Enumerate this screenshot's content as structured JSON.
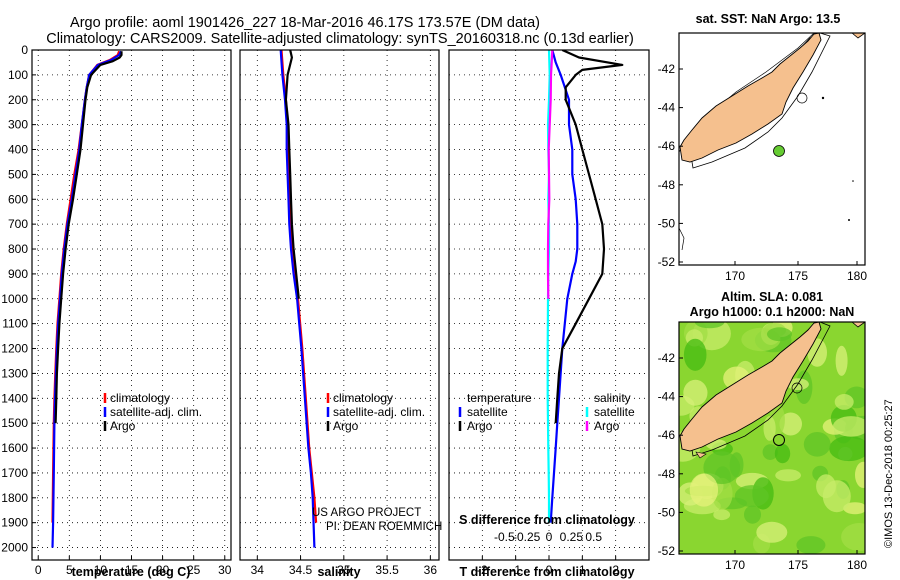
{
  "title_line1": "Argo profile: aoml 1901426_227 18-Mar-2016 46.17S 173.57E (DM data)",
  "title_line2": "Climatology: CARS2009. Satellite-adjusted climatology: synTS_20160318.nc (0.13d earlier)",
  "colors": {
    "climatology": "#ff0000",
    "satellite": "#0000ff",
    "argo": "#000000",
    "sal_satellite": "#00ffff",
    "sal_argo": "#ff00ff",
    "land": "#f5c08e",
    "sla_high": "#f0f590",
    "sla_low": "#33cc00"
  },
  "chart_data": [
    {
      "type": "line",
      "name": "temperature-panel",
      "xlabel": "temperature (deg C)",
      "xlim": [
        -1,
        31
      ],
      "ylim": [
        2050,
        0
      ],
      "xticks": [
        0,
        5,
        10,
        15,
        20,
        25,
        30
      ],
      "xtick_labels": [
        "0",
        "5",
        "10",
        "15",
        "20",
        "25",
        "30"
      ],
      "yticks": [
        0,
        100,
        200,
        300,
        400,
        500,
        600,
        700,
        800,
        900,
        1000,
        1100,
        1200,
        1300,
        1400,
        1500,
        1600,
        1700,
        1800,
        1900,
        2000
      ],
      "ytick_labels": [
        "0",
        "100",
        "200",
        "300",
        "400",
        "500",
        "600",
        "700",
        "800",
        "900",
        "1000",
        "1100",
        "1200",
        "1300",
        "1400",
        "1500",
        "1600",
        "1700",
        "1800",
        "1900",
        "2000"
      ],
      "legend": {
        "position": "lower-right",
        "entries": [
          "climatology",
          "satellite-adj. clim.",
          "Argo"
        ]
      },
      "series": [
        {
          "name": "climatology",
          "color": "#ff0000",
          "x": [
            13.0,
            12.8,
            11.5,
            9.5,
            8.2,
            7.8,
            7.5,
            7.0,
            6.5,
            5.8,
            5.2,
            4.6,
            4.1,
            3.7,
            3.4,
            3.1,
            2.9,
            2.75,
            2.6,
            2.5,
            2.4,
            2.3
          ],
          "y": [
            5,
            20,
            40,
            60,
            100,
            150,
            200,
            300,
            400,
            500,
            600,
            700,
            800,
            900,
            1000,
            1100,
            1200,
            1300,
            1400,
            1500,
            1700,
            1900
          ]
        },
        {
          "name": "satellite-adj. clim.",
          "color": "#0000ff",
          "x": [
            13.3,
            13.0,
            11.7,
            9.6,
            8.2,
            7.8,
            7.5,
            7.0,
            6.6,
            6.0,
            5.4,
            4.7,
            4.2,
            3.8,
            3.5,
            3.2,
            3.0,
            2.85,
            2.7,
            2.6,
            2.5,
            2.4,
            2.3
          ],
          "y": [
            5,
            20,
            40,
            60,
            100,
            150,
            200,
            300,
            400,
            500,
            600,
            700,
            800,
            900,
            1000,
            1100,
            1200,
            1300,
            1400,
            1500,
            1700,
            1900,
            2000
          ]
        },
        {
          "name": "Argo",
          "color": "#000000",
          "x": [
            13.4,
            13.4,
            13.1,
            12.0,
            10.0,
            8.5,
            7.9,
            7.6,
            7.2,
            6.8,
            6.2,
            5.6,
            4.9,
            4.4,
            4.0,
            3.7,
            3.4,
            3.2,
            3.0,
            2.9,
            2.8
          ],
          "y": [
            5,
            20,
            30,
            45,
            60,
            100,
            150,
            200,
            300,
            400,
            500,
            600,
            700,
            800,
            900,
            1000,
            1100,
            1200,
            1300,
            1400,
            1500
          ]
        }
      ]
    },
    {
      "type": "line",
      "name": "salinity-panel",
      "xlabel": "salinity",
      "xlim": [
        33.8,
        36.1
      ],
      "ylim": [
        2050,
        0
      ],
      "xticks": [
        34,
        34.5,
        35,
        35.5,
        36
      ],
      "xtick_labels": [
        "34",
        "34.5",
        "35",
        "35.5",
        "36"
      ],
      "legend": {
        "position": "lower-right",
        "entries": [
          "climatology",
          "satellite-adj. clim.",
          "Argo"
        ]
      },
      "annotation": [
        "US ARGO PROJECT",
        "PI: DEAN ROEMMICH"
      ],
      "series": [
        {
          "name": "climatology",
          "color": "#ff0000",
          "x": [
            34.28,
            34.3,
            34.33,
            34.35,
            34.35,
            34.36,
            34.37,
            34.38,
            34.4,
            34.43,
            34.47,
            34.52,
            34.56,
            34.6,
            34.63,
            34.66,
            34.68
          ],
          "y": [
            0,
            100,
            200,
            300,
            400,
            500,
            600,
            700,
            800,
            900,
            1000,
            1200,
            1400,
            1600,
            1700,
            1800,
            1900
          ]
        },
        {
          "name": "satellite-adj. clim.",
          "color": "#0000ff",
          "x": [
            34.27,
            34.29,
            34.32,
            34.34,
            34.34,
            34.35,
            34.36,
            34.37,
            34.39,
            34.42,
            34.46,
            34.51,
            34.55,
            34.59,
            34.62,
            34.64,
            34.66
          ],
          "y": [
            0,
            100,
            200,
            300,
            400,
            500,
            600,
            700,
            800,
            900,
            1000,
            1200,
            1400,
            1600,
            1700,
            1800,
            2000
          ]
        },
        {
          "name": "Argo",
          "color": "#000000",
          "x": [
            34.38,
            34.4,
            34.35,
            34.33,
            34.36,
            34.37,
            34.38,
            34.39,
            34.4,
            34.42,
            34.45,
            34.48
          ],
          "y": [
            0,
            30,
            100,
            200,
            300,
            400,
            500,
            600,
            700,
            800,
            900,
            1000
          ]
        }
      ]
    },
    {
      "type": "line",
      "name": "difference-panel",
      "xlabel": "T difference from climatology",
      "top_axis_label": "S difference from climatology",
      "xlim": [
        -3,
        3
      ],
      "ylim": [
        2050,
        0
      ],
      "xticks": [
        -2,
        -1,
        0,
        1,
        2
      ],
      "xtick_labels": [
        "-2",
        "-1",
        "0",
        "1",
        "2"
      ],
      "s_xticks": [
        -0.5,
        -0.25,
        0,
        0.25,
        0.5
      ],
      "s_xtick_labels": [
        "-0.5",
        "-0.25",
        "0",
        "0.25",
        "0.5"
      ],
      "legend": {
        "position": "lower",
        "temperature_title": "temperature",
        "salinity_title": "salinity",
        "temperature_entries": [
          "satellite",
          "Argo"
        ],
        "salinity_entries": [
          "satellite",
          "Argo"
        ]
      },
      "series": [
        {
          "name": "T satellite",
          "color": "#0000ff",
          "x": [
            0.1,
            0.2,
            0.35,
            0.6,
            0.6,
            0.7,
            0.7,
            0.8,
            0.85,
            0.85,
            0.8,
            0.7,
            0.55,
            0.4,
            0.3,
            0.25,
            0.2,
            0.15,
            0.1,
            0.05
          ],
          "y": [
            0,
            50,
            100,
            200,
            300,
            400,
            500,
            600,
            700,
            800,
            850,
            900,
            1000,
            1200,
            1400,
            1500,
            1600,
            1700,
            1800,
            1900
          ]
        },
        {
          "name": "T Argo",
          "color": "#000000",
          "x": [
            0.4,
            0.9,
            2.2,
            1.0,
            0.8,
            0.5,
            0.5,
            0.8,
            1.0,
            1.2,
            1.4,
            1.6,
            1.65,
            1.6,
            1.2,
            0.8,
            0.4,
            0.3,
            0.25,
            0.2
          ],
          "y": [
            0,
            30,
            60,
            80,
            100,
            150,
            200,
            300,
            400,
            500,
            600,
            700,
            800,
            900,
            1000,
            1100,
            1200,
            1300,
            1400,
            1500
          ]
        },
        {
          "name": "S satellite",
          "color": "#00ffff",
          "x": [
            0.0,
            0.02,
            0.0,
            -0.03,
            -0.02,
            0.0,
            -0.02,
            0.0,
            0.0,
            -0.02,
            -0.03,
            -0.04,
            -0.04,
            -0.03,
            -0.02,
            -0.01,
            0.0,
            0.0
          ],
          "y": [
            0,
            100,
            200,
            300,
            400,
            500,
            600,
            700,
            800,
            900,
            1000,
            1200,
            1400,
            1500,
            1600,
            1700,
            1800,
            1900
          ]
        },
        {
          "name": "S Argo",
          "color": "#ff00ff",
          "x": [
            0.1,
            0.08,
            0.06,
            0.05,
            0.02,
            -0.01,
            0.0,
            0.01,
            -0.02,
            -0.03,
            -0.03,
            -0.02
          ],
          "y": [
            0,
            50,
            100,
            200,
            300,
            400,
            500,
            600,
            700,
            800,
            900,
            1000
          ]
        }
      ]
    }
  ],
  "map_top": {
    "title": "sat. SST: NaN Argo: 13.5",
    "lon_ticks": [
      "170",
      "175",
      "180"
    ],
    "lat_ticks": [
      "-42",
      "-44",
      "-46",
      "-48",
      "-50",
      "-52"
    ]
  },
  "map_bottom": {
    "title_line1": "Altim. SLA: 0.081",
    "title_line2": "Argo h1000: 0.1 h2000: NaN",
    "lon_ticks": [
      "170",
      "175",
      "180"
    ],
    "lat_ticks": [
      "-42",
      "-44",
      "-46",
      "-48",
      "-50",
      "-52"
    ]
  },
  "credit": "©IMOS 13-Dec-2018 00:25:27"
}
